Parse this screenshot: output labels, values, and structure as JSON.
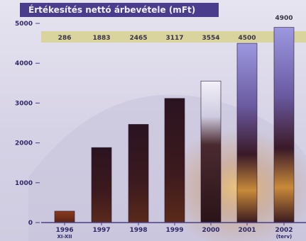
{
  "chart_data": {
    "type": "bar",
    "title": "Értékesítés nettó árbevétele (mFt)",
    "categories": [
      "1996 XI-XII",
      "1997",
      "1998",
      "1999",
      "2000",
      "2001",
      "2002 (terv)"
    ],
    "category_lines": [
      [
        "1996",
        "XI-XII"
      ],
      [
        "1997"
      ],
      [
        "1998"
      ],
      [
        "1999"
      ],
      [
        "2000"
      ],
      [
        "2001"
      ],
      [
        "2002",
        "(terv)"
      ]
    ],
    "values": [
      286,
      1883,
      2465,
      3117,
      3554,
      4500,
      4900
    ],
    "data_labels": [
      "286",
      "1883",
      "2465",
      "3117",
      "3554",
      "4500",
      "4900"
    ],
    "yticks": [
      "0",
      "1000",
      "2000",
      "3000",
      "4000",
      "5000"
    ],
    "ylim": [
      0,
      5000
    ],
    "grid": false,
    "legend": "none",
    "colors": {
      "background": "#dcdaea",
      "title_band": "#4a3e8c",
      "label_band": "#d8d294",
      "bar_dark": "#3a1a1e",
      "bar_light": "#8a86d4",
      "tick_text": "#2e2868"
    }
  }
}
